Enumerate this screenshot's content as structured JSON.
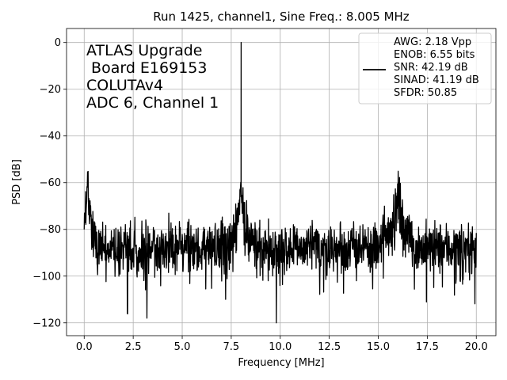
{
  "chart_data": {
    "type": "line",
    "title": "Run 1425, channel1, Sine Freq.: 8.005 MHz",
    "xlabel": "Frequency [MHz]",
    "ylabel": "PSD [dB]",
    "xlim": [
      -0.9,
      21.0
    ],
    "ylim": [
      -125.5,
      6.0
    ],
    "xticks": [
      0,
      2.5,
      5,
      7.5,
      10,
      12.5,
      15,
      17.5,
      20
    ],
    "xtick_labels": [
      "0.0",
      "2.5",
      "5.0",
      "7.5",
      "10.0",
      "12.5",
      "15.0",
      "17.5",
      "20.0"
    ],
    "yticks": [
      0,
      -20,
      -40,
      -60,
      -80,
      -100,
      -120
    ],
    "ytick_labels": [
      "0",
      "−20",
      "−40",
      "−60",
      "−80",
      "−100",
      "−120"
    ],
    "grid": true,
    "annotation": [
      "ATLAS Upgrade",
      " Board E169153",
      "COLUTAv4",
      "ADC 6, Channel 1"
    ],
    "legend": {
      "placement": "top-right",
      "lines": [
        "AWG: 2.18 Vpp",
        "ENOB: 6.55 bits",
        "SNR: 42.19 dB",
        "SINAD: 41.19 dB",
        "SFDR: 50.85"
      ]
    },
    "series": [
      {
        "name": "PSD",
        "color": "#000000",
        "noise_floor_db": -88,
        "noise_spread_db": 10,
        "x_range": [
          0.0,
          20.0
        ],
        "features": [
          {
            "x": 0.2,
            "value": -58,
            "kind": "low-frequency spur"
          },
          {
            "x": 8.005,
            "value": 0,
            "kind": "fundamental"
          },
          {
            "x": 7.9,
            "value": -60,
            "kind": "skirt"
          },
          {
            "x": 16.0,
            "value": -58,
            "kind": "second harmonic"
          },
          {
            "x": 2.2,
            "value": -116,
            "kind": "dip"
          },
          {
            "x": 3.2,
            "value": -118,
            "kind": "dip"
          },
          {
            "x": 9.8,
            "value": -120,
            "kind": "dip"
          }
        ]
      }
    ]
  }
}
